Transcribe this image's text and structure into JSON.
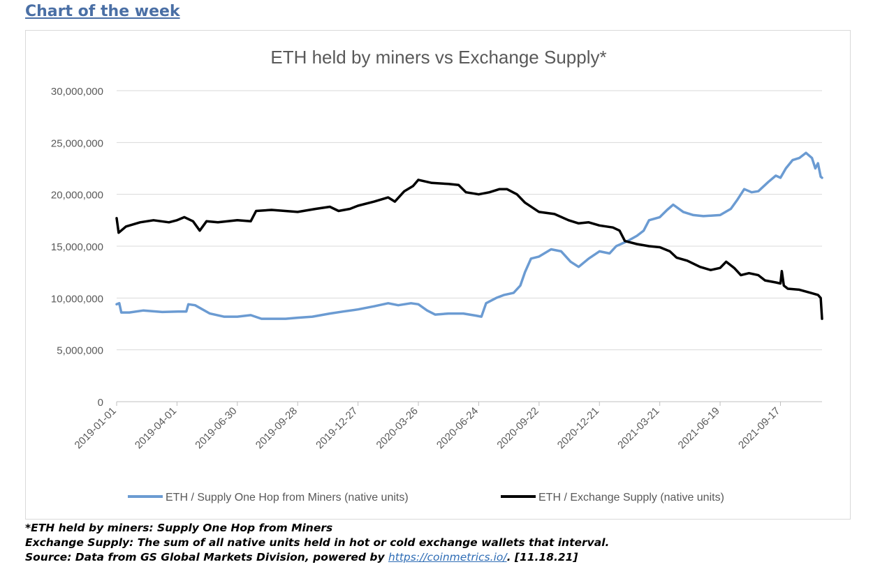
{
  "header": {
    "title": "Chart of the week"
  },
  "chart_data": {
    "type": "line",
    "title": "ETH held by miners vs Exchange Supply*",
    "xlabel": "",
    "ylabel": "",
    "ylim": [
      0,
      30000000
    ],
    "yticks": [
      0,
      5000000,
      10000000,
      15000000,
      20000000,
      25000000,
      30000000
    ],
    "ytick_labels": [
      "0",
      "5,000,000",
      "10,000,000",
      "15,000,000",
      "20,000,000",
      "25,000,000",
      "30,000,000"
    ],
    "xlim": [
      "2019-01-01",
      "2021-11-18"
    ],
    "xticks": [
      "2019-01-01",
      "2019-04-01",
      "2019-06-30",
      "2019-09-28",
      "2019-12-27",
      "2020-03-26",
      "2020-06-24",
      "2020-09-22",
      "2020-12-21",
      "2021-03-21",
      "2021-06-19",
      "2021-09-17"
    ],
    "grid": true,
    "legend": "bottom",
    "series": [
      {
        "name": "ETH / Supply One Hop from Miners (native units)",
        "color": "#6b9bd2",
        "points": [
          [
            "2019-01-01",
            9400000
          ],
          [
            "2019-01-05",
            9500000
          ],
          [
            "2019-01-08",
            8600000
          ],
          [
            "2019-01-20",
            8600000
          ],
          [
            "2019-02-10",
            8800000
          ],
          [
            "2019-03-10",
            8650000
          ],
          [
            "2019-04-05",
            8700000
          ],
          [
            "2019-04-15",
            8700000
          ],
          [
            "2019-04-18",
            9400000
          ],
          [
            "2019-04-28",
            9300000
          ],
          [
            "2019-05-20",
            8500000
          ],
          [
            "2019-06-10",
            8200000
          ],
          [
            "2019-06-30",
            8200000
          ],
          [
            "2019-07-20",
            8350000
          ],
          [
            "2019-08-05",
            8000000
          ],
          [
            "2019-09-10",
            8000000
          ],
          [
            "2019-09-28",
            8100000
          ],
          [
            "2019-10-20",
            8200000
          ],
          [
            "2019-11-15",
            8500000
          ],
          [
            "2019-12-05",
            8700000
          ],
          [
            "2019-12-27",
            8900000
          ],
          [
            "2020-01-20",
            9200000
          ],
          [
            "2020-02-10",
            9500000
          ],
          [
            "2020-02-25",
            9300000
          ],
          [
            "2020-03-15",
            9500000
          ],
          [
            "2020-03-26",
            9400000
          ],
          [
            "2020-04-08",
            8800000
          ],
          [
            "2020-04-20",
            8400000
          ],
          [
            "2020-05-10",
            8500000
          ],
          [
            "2020-06-01",
            8500000
          ],
          [
            "2020-06-20",
            8300000
          ],
          [
            "2020-06-28",
            8200000
          ],
          [
            "2020-07-05",
            9500000
          ],
          [
            "2020-07-20",
            10000000
          ],
          [
            "2020-08-01",
            10300000
          ],
          [
            "2020-08-15",
            10500000
          ],
          [
            "2020-08-25",
            11200000
          ],
          [
            "2020-09-01",
            12500000
          ],
          [
            "2020-09-10",
            13800000
          ],
          [
            "2020-09-22",
            14000000
          ],
          [
            "2020-10-10",
            14700000
          ],
          [
            "2020-10-25",
            14500000
          ],
          [
            "2020-11-08",
            13500000
          ],
          [
            "2020-11-20",
            13000000
          ],
          [
            "2020-12-05",
            13800000
          ],
          [
            "2020-12-21",
            14500000
          ],
          [
            "2021-01-05",
            14300000
          ],
          [
            "2021-01-15",
            15000000
          ],
          [
            "2021-02-01",
            15500000
          ],
          [
            "2021-02-15",
            16000000
          ],
          [
            "2021-02-25",
            16500000
          ],
          [
            "2021-03-05",
            17500000
          ],
          [
            "2021-03-21",
            17800000
          ],
          [
            "2021-04-01",
            18500000
          ],
          [
            "2021-04-10",
            19000000
          ],
          [
            "2021-04-25",
            18300000
          ],
          [
            "2021-05-10",
            18000000
          ],
          [
            "2021-05-25",
            17900000
          ],
          [
            "2021-06-19",
            18000000
          ],
          [
            "2021-07-05",
            18600000
          ],
          [
            "2021-07-15",
            19500000
          ],
          [
            "2021-07-25",
            20500000
          ],
          [
            "2021-08-05",
            20200000
          ],
          [
            "2021-08-15",
            20300000
          ],
          [
            "2021-08-30",
            21200000
          ],
          [
            "2021-09-10",
            21800000
          ],
          [
            "2021-09-17",
            21600000
          ],
          [
            "2021-09-25",
            22500000
          ],
          [
            "2021-10-05",
            23300000
          ],
          [
            "2021-10-15",
            23500000
          ],
          [
            "2021-10-25",
            24000000
          ],
          [
            "2021-11-03",
            23500000
          ],
          [
            "2021-11-08",
            22500000
          ],
          [
            "2021-11-12",
            23000000
          ],
          [
            "2021-11-16",
            21700000
          ],
          [
            "2021-11-18",
            21600000
          ]
        ]
      },
      {
        "name": "ETH / Exchange Supply (native units)",
        "color": "#000000",
        "points": [
          [
            "2019-01-01",
            17700000
          ],
          [
            "2019-01-04",
            16300000
          ],
          [
            "2019-01-15",
            16900000
          ],
          [
            "2019-02-05",
            17300000
          ],
          [
            "2019-02-25",
            17500000
          ],
          [
            "2019-03-20",
            17300000
          ],
          [
            "2019-04-01",
            17500000
          ],
          [
            "2019-04-12",
            17800000
          ],
          [
            "2019-04-25",
            17400000
          ],
          [
            "2019-05-05",
            16500000
          ],
          [
            "2019-05-15",
            17400000
          ],
          [
            "2019-06-01",
            17300000
          ],
          [
            "2019-06-30",
            17500000
          ],
          [
            "2019-07-20",
            17400000
          ],
          [
            "2019-07-28",
            18400000
          ],
          [
            "2019-08-20",
            18500000
          ],
          [
            "2019-09-28",
            18300000
          ],
          [
            "2019-10-25",
            18600000
          ],
          [
            "2019-11-15",
            18800000
          ],
          [
            "2019-11-28",
            18400000
          ],
          [
            "2019-12-15",
            18600000
          ],
          [
            "2019-12-27",
            18900000
          ],
          [
            "2020-01-20",
            19300000
          ],
          [
            "2020-02-10",
            19700000
          ],
          [
            "2020-02-20",
            19300000
          ],
          [
            "2020-03-05",
            20300000
          ],
          [
            "2020-03-18",
            20800000
          ],
          [
            "2020-03-26",
            21400000
          ],
          [
            "2020-04-15",
            21100000
          ],
          [
            "2020-05-10",
            21000000
          ],
          [
            "2020-05-25",
            20900000
          ],
          [
            "2020-06-05",
            20200000
          ],
          [
            "2020-06-24",
            20000000
          ],
          [
            "2020-07-10",
            20200000
          ],
          [
            "2020-07-25",
            20500000
          ],
          [
            "2020-08-05",
            20500000
          ],
          [
            "2020-08-20",
            20000000
          ],
          [
            "2020-09-01",
            19200000
          ],
          [
            "2020-09-22",
            18300000
          ],
          [
            "2020-10-15",
            18100000
          ],
          [
            "2020-11-05",
            17500000
          ],
          [
            "2020-11-20",
            17200000
          ],
          [
            "2020-12-05",
            17300000
          ],
          [
            "2020-12-21",
            17000000
          ],
          [
            "2021-01-10",
            16800000
          ],
          [
            "2021-01-20",
            16500000
          ],
          [
            "2021-01-28",
            15500000
          ],
          [
            "2021-02-15",
            15200000
          ],
          [
            "2021-03-05",
            15000000
          ],
          [
            "2021-03-21",
            14900000
          ],
          [
            "2021-04-05",
            14500000
          ],
          [
            "2021-04-15",
            13900000
          ],
          [
            "2021-05-01",
            13600000
          ],
          [
            "2021-05-20",
            13000000
          ],
          [
            "2021-06-05",
            12700000
          ],
          [
            "2021-06-19",
            12900000
          ],
          [
            "2021-06-28",
            13500000
          ],
          [
            "2021-07-10",
            12900000
          ],
          [
            "2021-07-20",
            12200000
          ],
          [
            "2021-08-01",
            12400000
          ],
          [
            "2021-08-15",
            12200000
          ],
          [
            "2021-08-25",
            11700000
          ],
          [
            "2021-09-10",
            11500000
          ],
          [
            "2021-09-17",
            11400000
          ],
          [
            "2021-09-19",
            12600000
          ],
          [
            "2021-09-22",
            11200000
          ],
          [
            "2021-09-28",
            10900000
          ],
          [
            "2021-10-15",
            10800000
          ],
          [
            "2021-11-01",
            10500000
          ],
          [
            "2021-11-12",
            10300000
          ],
          [
            "2021-11-16",
            10000000
          ],
          [
            "2021-11-18",
            8000000
          ]
        ]
      }
    ]
  },
  "footnote": {
    "line1": "*ETH held by miners: Supply One Hop from Miners",
    "line2": "Exchange Supply: The sum of all native units held in hot or cold exchange wallets that interval.",
    "line3_prefix": "Source: Data from GS Global Markets Division, powered by ",
    "line3_link": "https://coinmetrics.io/",
    "line3_suffix": ". [11.18.21]"
  }
}
